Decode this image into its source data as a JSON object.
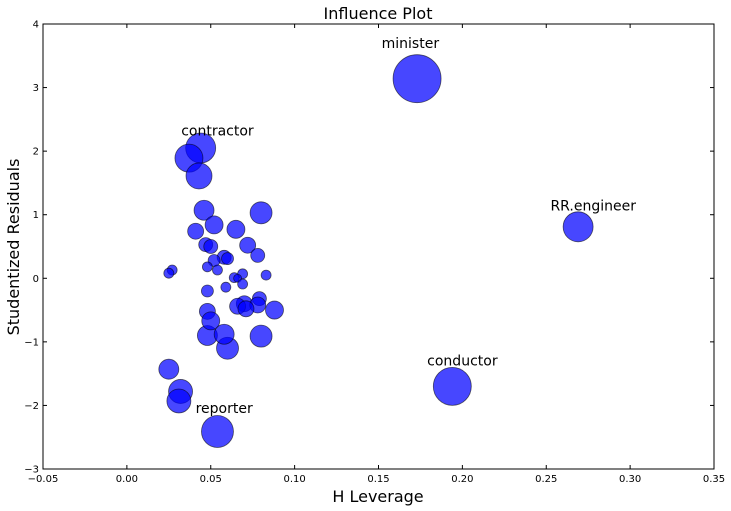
{
  "chart_data": {
    "type": "scatter",
    "title": "Influence Plot",
    "xlabel": "H Leverage",
    "ylabel": "Studentized Residuals",
    "xlim": [
      -0.05,
      0.35
    ],
    "ylim": [
      -3,
      4
    ],
    "xticks": [
      -0.05,
      0.0,
      0.05,
      0.1,
      0.15,
      0.2,
      0.25,
      0.3,
      0.35
    ],
    "xtick_labels": [
      "−0.05",
      "0.00",
      "0.05",
      "0.10",
      "0.15",
      "0.20",
      "0.25",
      "0.30",
      "0.35"
    ],
    "yticks": [
      -3,
      -2,
      -1,
      0,
      1,
      2,
      3,
      4
    ],
    "ytick_labels": [
      "−3",
      "−2",
      "−1",
      "0",
      "1",
      "2",
      "3",
      "4"
    ],
    "grid": false,
    "marker_color": "#0000ff",
    "points": [
      {
        "x": 0.173,
        "y": 3.14,
        "size": 24
      },
      {
        "x": 0.194,
        "y": -1.7,
        "size": 19
      },
      {
        "x": 0.269,
        "y": 0.81,
        "size": 15
      },
      {
        "x": 0.044,
        "y": 2.05,
        "size": 15
      },
      {
        "x": 0.037,
        "y": 1.89,
        "size": 14
      },
      {
        "x": 0.043,
        "y": 1.61,
        "size": 13
      },
      {
        "x": 0.054,
        "y": -2.41,
        "size": 16
      },
      {
        "x": 0.032,
        "y": -1.78,
        "size": 12
      },
      {
        "x": 0.031,
        "y": -1.93,
        "size": 12
      },
      {
        "x": 0.025,
        "y": -1.43,
        "size": 10
      },
      {
        "x": 0.06,
        "y": -1.1,
        "size": 11
      },
      {
        "x": 0.08,
        "y": -0.91,
        "size": 11
      },
      {
        "x": 0.048,
        "y": -0.9,
        "size": 10
      },
      {
        "x": 0.058,
        "y": -0.88,
        "size": 10
      },
      {
        "x": 0.08,
        "y": 1.03,
        "size": 11
      },
      {
        "x": 0.046,
        "y": 1.07,
        "size": 10
      },
      {
        "x": 0.065,
        "y": 0.77,
        "size": 9
      },
      {
        "x": 0.052,
        "y": 0.84,
        "size": 9
      },
      {
        "x": 0.041,
        "y": 0.74,
        "size": 8
      },
      {
        "x": 0.072,
        "y": 0.52,
        "size": 8
      },
      {
        "x": 0.047,
        "y": 0.53,
        "size": 7
      },
      {
        "x": 0.05,
        "y": 0.5,
        "size": 7
      },
      {
        "x": 0.078,
        "y": 0.36,
        "size": 7
      },
      {
        "x": 0.058,
        "y": 0.33,
        "size": 7
      },
      {
        "x": 0.052,
        "y": 0.28,
        "size": 6
      },
      {
        "x": 0.06,
        "y": 0.31,
        "size": 6
      },
      {
        "x": 0.048,
        "y": 0.18,
        "size": 5
      },
      {
        "x": 0.054,
        "y": 0.13,
        "size": 5
      },
      {
        "x": 0.069,
        "y": 0.07,
        "size": 5
      },
      {
        "x": 0.064,
        "y": 0.01,
        "size": 5
      },
      {
        "x": 0.066,
        "y": 0.0,
        "size": 4
      },
      {
        "x": 0.069,
        "y": -0.09,
        "size": 5
      },
      {
        "x": 0.083,
        "y": 0.05,
        "size": 5
      },
      {
        "x": 0.027,
        "y": 0.13,
        "size": 5
      },
      {
        "x": 0.025,
        "y": 0.08,
        "size": 5
      },
      {
        "x": 0.059,
        "y": -0.14,
        "size": 5
      },
      {
        "x": 0.048,
        "y": -0.2,
        "size": 6
      },
      {
        "x": 0.079,
        "y": -0.32,
        "size": 7
      },
      {
        "x": 0.07,
        "y": -0.4,
        "size": 8
      },
      {
        "x": 0.066,
        "y": -0.44,
        "size": 8
      },
      {
        "x": 0.078,
        "y": -0.42,
        "size": 8
      },
      {
        "x": 0.071,
        "y": -0.48,
        "size": 8
      },
      {
        "x": 0.088,
        "y": -0.5,
        "size": 9
      },
      {
        "x": 0.048,
        "y": -0.52,
        "size": 8
      },
      {
        "x": 0.05,
        "y": -0.67,
        "size": 9
      }
    ],
    "annotations": [
      {
        "text": "minister",
        "x": 0.169,
        "y": 3.62
      },
      {
        "text": "contractor",
        "x": 0.054,
        "y": 2.25
      },
      {
        "text": "RR.engineer",
        "x": 0.278,
        "y": 1.07
      },
      {
        "text": "conductor",
        "x": 0.2,
        "y": -1.37
      },
      {
        "text": "reporter",
        "x": 0.058,
        "y": -2.12
      }
    ]
  }
}
